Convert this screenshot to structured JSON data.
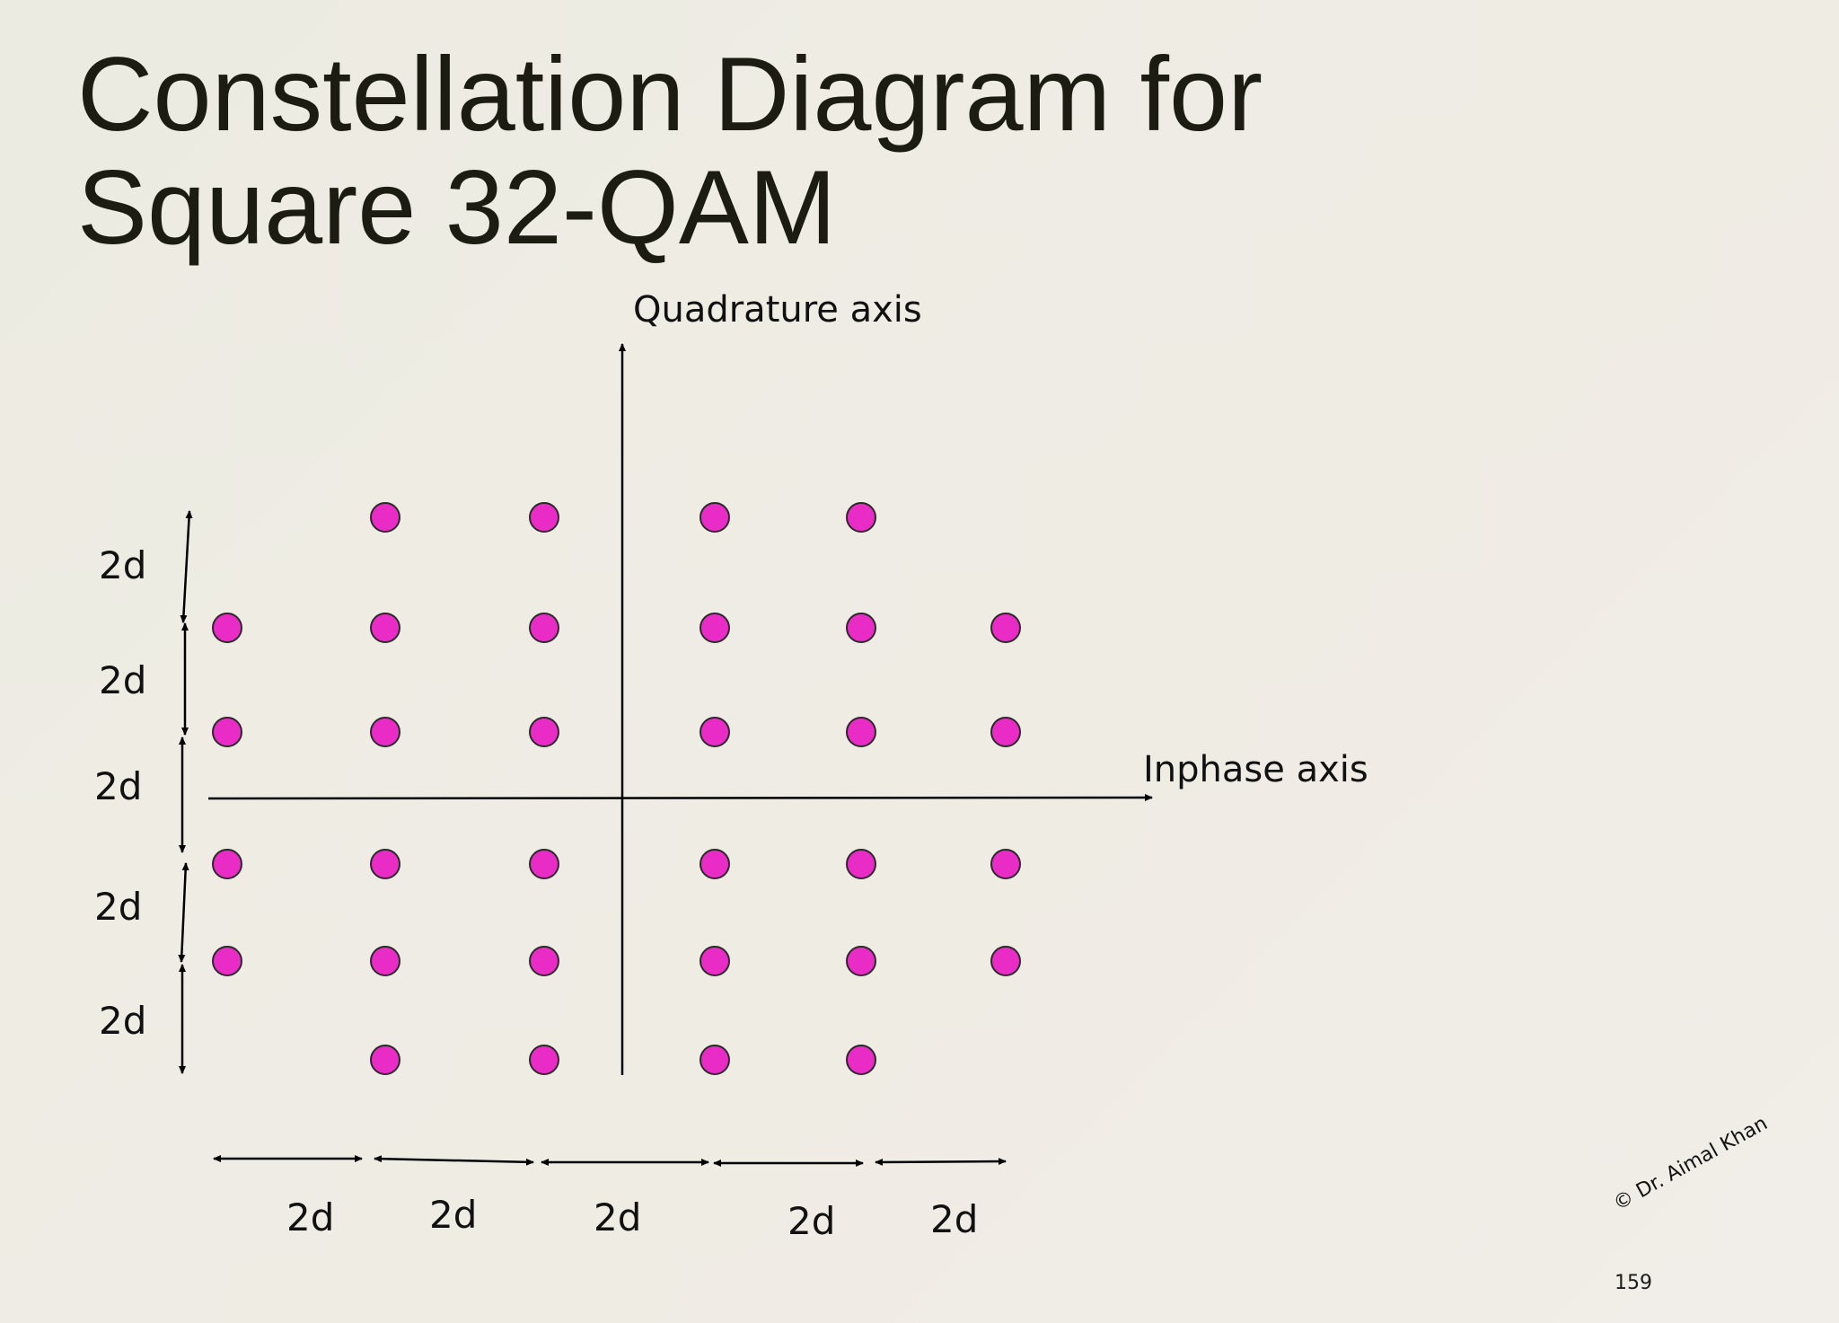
{
  "slide": {
    "title_line1": "Constellation Diagram for",
    "title_line2": "Square 32-QAM",
    "page_number": "159",
    "copyright": "© Dr. Aimal Khan"
  },
  "diagram": {
    "quadrature_axis_label": "Quadrature axis",
    "inphase_axis_label": "Inphase axis",
    "spacing_label": "2d",
    "point_color": "#ea2cc6",
    "point_outline_color": "#2a2a2a",
    "line_color": "#000000",
    "constellation_points": [
      {
        "i": -3,
        "q": 5
      },
      {
        "i": -1,
        "q": 5
      },
      {
        "i": 1,
        "q": 5
      },
      {
        "i": 3,
        "q": 5
      },
      {
        "i": -5,
        "q": 3
      },
      {
        "i": -3,
        "q": 3
      },
      {
        "i": -1,
        "q": 3
      },
      {
        "i": 1,
        "q": 3
      },
      {
        "i": 3,
        "q": 3
      },
      {
        "i": 5,
        "q": 3
      },
      {
        "i": -5,
        "q": 1
      },
      {
        "i": -3,
        "q": 1
      },
      {
        "i": -1,
        "q": 1
      },
      {
        "i": 1,
        "q": 1
      },
      {
        "i": 3,
        "q": 1
      },
      {
        "i": 5,
        "q": 1
      },
      {
        "i": -5,
        "q": -1
      },
      {
        "i": -3,
        "q": -1
      },
      {
        "i": -1,
        "q": -1
      },
      {
        "i": 1,
        "q": -1
      },
      {
        "i": 3,
        "q": -1
      },
      {
        "i": 5,
        "q": -1
      },
      {
        "i": -5,
        "q": -3
      },
      {
        "i": -3,
        "q": -3
      },
      {
        "i": -1,
        "q": -3
      },
      {
        "i": 1,
        "q": -3
      },
      {
        "i": 3,
        "q": -3
      },
      {
        "i": 5,
        "q": -3
      },
      {
        "i": -3,
        "q": -5
      },
      {
        "i": -1,
        "q": -5
      },
      {
        "i": 1,
        "q": -5
      },
      {
        "i": 3,
        "q": -5
      }
    ]
  }
}
